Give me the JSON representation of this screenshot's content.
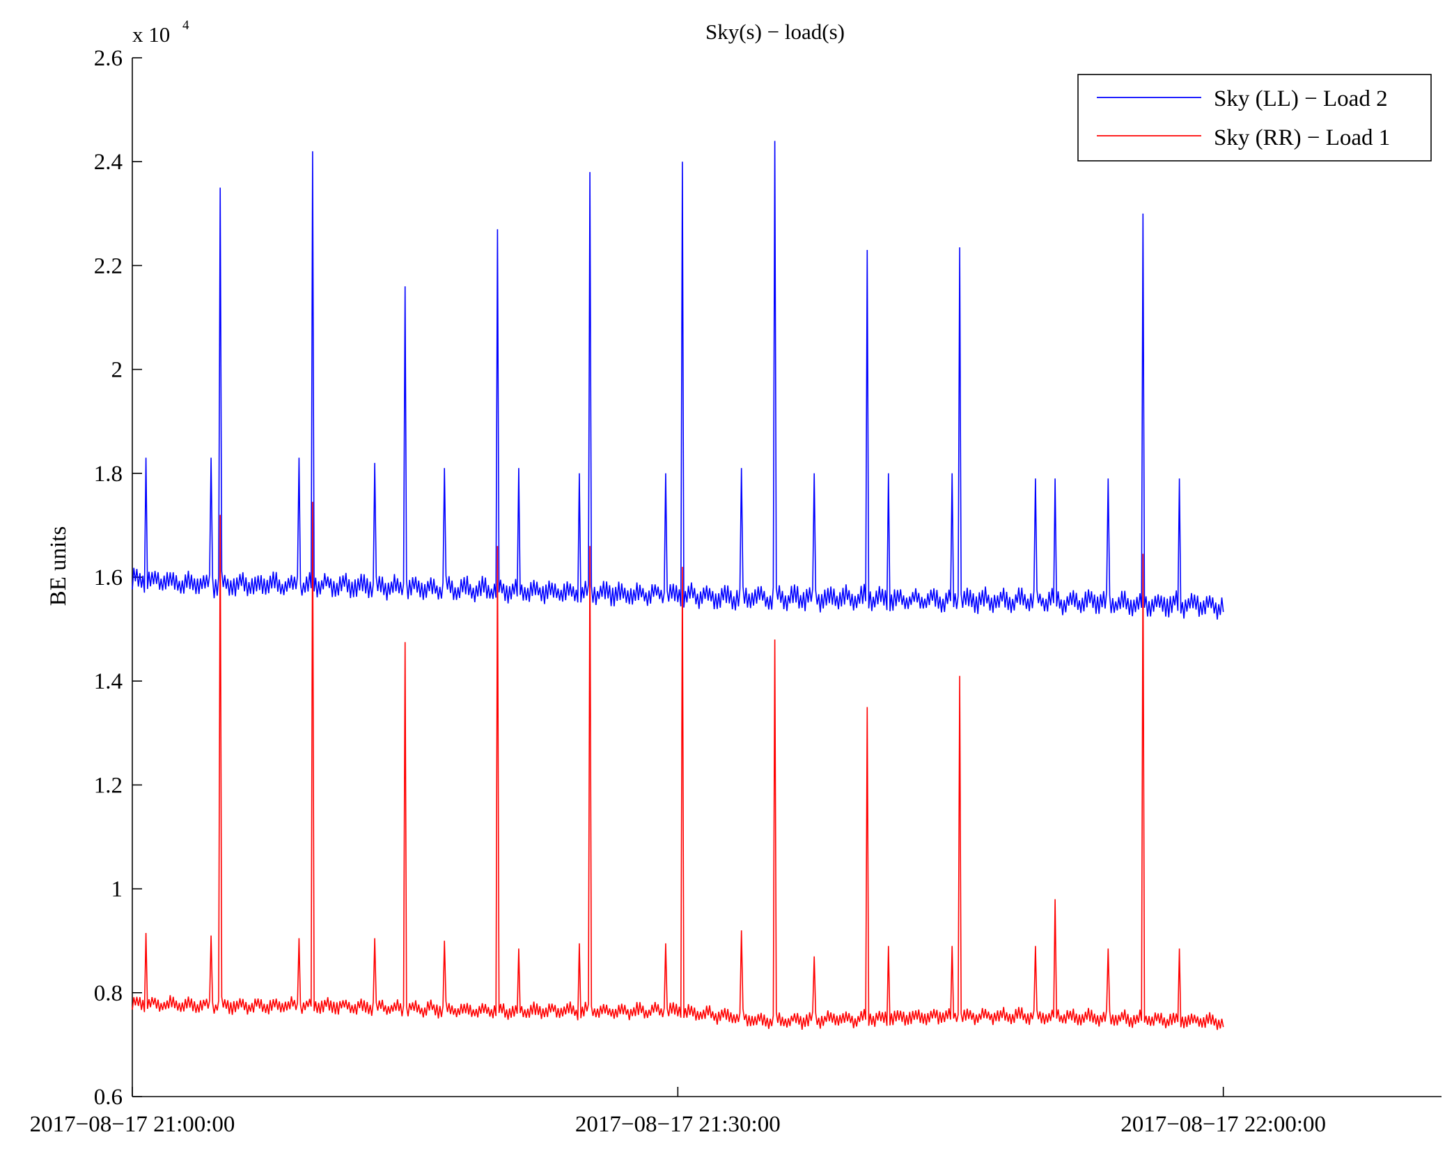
{
  "chart_data": {
    "type": "line",
    "title": "Sky(s) − load(s)",
    "xlabel": "",
    "ylabel": "BE units",
    "y_multiplier_label": "x 10",
    "y_multiplier_exponent": "4",
    "xlim": [
      "2017-08-17 21:00:00",
      "2017-08-17 22:12:00"
    ],
    "ylim": [
      0.6,
      2.6
    ],
    "y_ticks": [
      0.6,
      0.8,
      1,
      1.2,
      1.4,
      1.6,
      1.8,
      2,
      2.2,
      2.4,
      2.6
    ],
    "y_tick_labels": [
      "0.6",
      "0.8",
      "1",
      "1.2",
      "1.4",
      "1.6",
      "1.8",
      "2",
      "2.2",
      "2.4",
      "2.6"
    ],
    "x_ticks": [
      "2017-08-17 21:00:00",
      "2017-08-17 21:30:00",
      "2017-08-17 22:00:00"
    ],
    "x_tick_labels": [
      "2017−08−17 21:00:00",
      "2017−08−17 21:30:00",
      "2017−08−17 22:00:00"
    ],
    "grid": false,
    "legend_position": "top-right",
    "series": [
      {
        "name": "Sky (LL) − Load 2",
        "color": "#0000ff",
        "baseline": [
          {
            "t": "2017-08-17 21:00:00",
            "y": 1.595
          },
          {
            "t": "2017-08-17 21:05:00",
            "y": 1.585
          },
          {
            "t": "2017-08-17 21:10:00",
            "y": 1.585
          },
          {
            "t": "2017-08-17 21:15:00",
            "y": 1.58
          },
          {
            "t": "2017-08-17 21:20:00",
            "y": 1.575
          },
          {
            "t": "2017-08-17 21:25:00",
            "y": 1.57
          },
          {
            "t": "2017-08-17 21:30:00",
            "y": 1.565
          },
          {
            "t": "2017-08-17 21:35:00",
            "y": 1.56
          },
          {
            "t": "2017-08-17 21:40:00",
            "y": 1.56
          },
          {
            "t": "2017-08-17 21:45:00",
            "y": 1.555
          },
          {
            "t": "2017-08-17 21:50:00",
            "y": 1.555
          },
          {
            "t": "2017-08-17 21:55:00",
            "y": 1.55
          },
          {
            "t": "2017-08-17 22:00:00",
            "y": 1.545
          }
        ],
        "spikes": [
          {
            "t": "2017-08-17 21:00:45",
            "y": 1.83
          },
          {
            "t": "2017-08-17 21:04:20",
            "y": 1.83
          },
          {
            "t": "2017-08-17 21:04:50",
            "y": 2.35
          },
          {
            "t": "2017-08-17 21:09:10",
            "y": 1.83
          },
          {
            "t": "2017-08-17 21:09:55",
            "y": 2.42
          },
          {
            "t": "2017-08-17 21:13:20",
            "y": 1.82
          },
          {
            "t": "2017-08-17 21:15:00",
            "y": 2.16
          },
          {
            "t": "2017-08-17 21:17:10",
            "y": 1.81
          },
          {
            "t": "2017-08-17 21:20:05",
            "y": 2.27
          },
          {
            "t": "2017-08-17 21:21:15",
            "y": 1.81
          },
          {
            "t": "2017-08-17 21:24:35",
            "y": 1.8
          },
          {
            "t": "2017-08-17 21:25:10",
            "y": 2.38
          },
          {
            "t": "2017-08-17 21:29:20",
            "y": 1.8
          },
          {
            "t": "2017-08-17 21:30:15",
            "y": 2.4
          },
          {
            "t": "2017-08-17 21:33:30",
            "y": 1.81
          },
          {
            "t": "2017-08-17 21:35:20",
            "y": 2.44
          },
          {
            "t": "2017-08-17 21:37:30",
            "y": 1.8
          },
          {
            "t": "2017-08-17 21:40:25",
            "y": 2.23
          },
          {
            "t": "2017-08-17 21:41:35",
            "y": 1.8
          },
          {
            "t": "2017-08-17 21:45:05",
            "y": 1.8
          },
          {
            "t": "2017-08-17 21:45:30",
            "y": 2.235
          },
          {
            "t": "2017-08-17 21:49:40",
            "y": 1.79
          },
          {
            "t": "2017-08-17 21:50:45",
            "y": 1.79
          },
          {
            "t": "2017-08-17 21:53:40",
            "y": 1.79
          },
          {
            "t": "2017-08-17 21:55:35",
            "y": 2.3
          },
          {
            "t": "2017-08-17 21:57:35",
            "y": 1.79
          }
        ]
      },
      {
        "name": "Sky (RR) − Load 1",
        "color": "#ff0000",
        "baseline": [
          {
            "t": "2017-08-17 21:00:00",
            "y": 0.78
          },
          {
            "t": "2017-08-17 21:05:00",
            "y": 0.775
          },
          {
            "t": "2017-08-17 21:10:00",
            "y": 0.775
          },
          {
            "t": "2017-08-17 21:15:00",
            "y": 0.77
          },
          {
            "t": "2017-08-17 21:20:00",
            "y": 0.765
          },
          {
            "t": "2017-08-17 21:25:00",
            "y": 0.765
          },
          {
            "t": "2017-08-17 21:30:00",
            "y": 0.765
          },
          {
            "t": "2017-08-17 21:35:00",
            "y": 0.745
          },
          {
            "t": "2017-08-17 21:40:00",
            "y": 0.75
          },
          {
            "t": "2017-08-17 21:45:00",
            "y": 0.755
          },
          {
            "t": "2017-08-17 21:50:00",
            "y": 0.755
          },
          {
            "t": "2017-08-17 21:55:00",
            "y": 0.75
          },
          {
            "t": "2017-08-17 22:00:00",
            "y": 0.745
          }
        ],
        "spikes": [
          {
            "t": "2017-08-17 21:00:45",
            "y": 0.915
          },
          {
            "t": "2017-08-17 21:04:20",
            "y": 0.91
          },
          {
            "t": "2017-08-17 21:04:50",
            "y": 1.72
          },
          {
            "t": "2017-08-17 21:09:10",
            "y": 0.905
          },
          {
            "t": "2017-08-17 21:09:55",
            "y": 1.745
          },
          {
            "t": "2017-08-17 21:13:20",
            "y": 0.905
          },
          {
            "t": "2017-08-17 21:15:00",
            "y": 1.475
          },
          {
            "t": "2017-08-17 21:17:10",
            "y": 0.9
          },
          {
            "t": "2017-08-17 21:20:05",
            "y": 1.66
          },
          {
            "t": "2017-08-17 21:21:15",
            "y": 0.885
          },
          {
            "t": "2017-08-17 21:24:35",
            "y": 0.895
          },
          {
            "t": "2017-08-17 21:25:10",
            "y": 1.66
          },
          {
            "t": "2017-08-17 21:29:20",
            "y": 0.895
          },
          {
            "t": "2017-08-17 21:30:15",
            "y": 1.62
          },
          {
            "t": "2017-08-17 21:33:30",
            "y": 0.92
          },
          {
            "t": "2017-08-17 21:35:20",
            "y": 1.48
          },
          {
            "t": "2017-08-17 21:37:30",
            "y": 0.87
          },
          {
            "t": "2017-08-17 21:40:25",
            "y": 1.35
          },
          {
            "t": "2017-08-17 21:41:35",
            "y": 0.89
          },
          {
            "t": "2017-08-17 21:45:05",
            "y": 0.89
          },
          {
            "t": "2017-08-17 21:45:30",
            "y": 1.41
          },
          {
            "t": "2017-08-17 21:49:40",
            "y": 0.89
          },
          {
            "t": "2017-08-17 21:50:45",
            "y": 0.98
          },
          {
            "t": "2017-08-17 21:53:40",
            "y": 0.885
          },
          {
            "t": "2017-08-17 21:55:35",
            "y": 1.645
          },
          {
            "t": "2017-08-17 21:57:35",
            "y": 0.885
          }
        ]
      }
    ]
  }
}
